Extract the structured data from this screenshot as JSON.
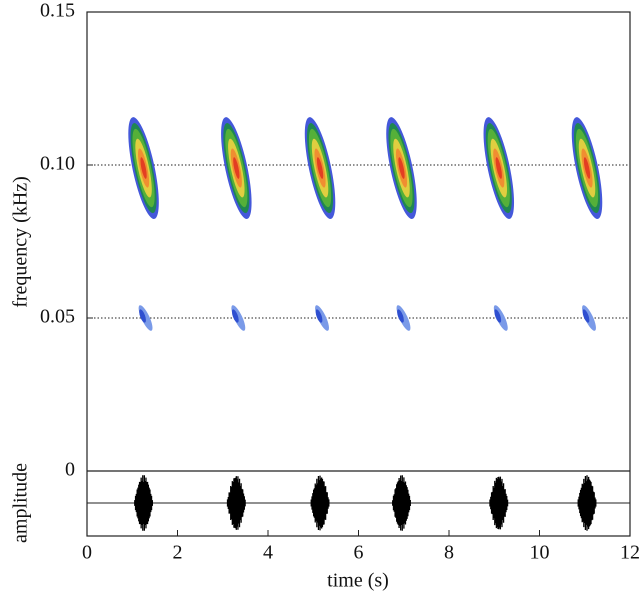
{
  "chart_data": {
    "type": "spectrogram",
    "ylabel": "frequency (kHz)",
    "xlabel": "time (s)",
    "amplitude_label": "amplitude",
    "x": [
      1.25,
      3.3,
      5.15,
      6.95,
      9.1,
      11.05
    ],
    "values": [
      0.099,
      0.099,
      0.099,
      0.099,
      0.099,
      0.099
    ],
    "lower_values": [
      0.05,
      0.05,
      0.05,
      0.05,
      0.05,
      0.05
    ],
    "xlim": [
      0,
      12
    ],
    "xticks": [
      0,
      2,
      4,
      6,
      8,
      10,
      12
    ],
    "ylim": [
      0,
      0.15
    ],
    "yticks": [
      0,
      0.05,
      {
        "value": 0.1,
        "label": "0.10"
      },
      0.15
    ],
    "grid": true
  }
}
